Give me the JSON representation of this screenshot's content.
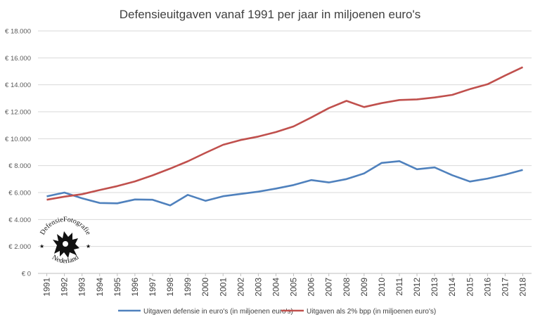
{
  "chart_data": {
    "type": "line",
    "title": "Defensieuitgaven vanaf 1991 per jaar in miljoenen euro's",
    "x": [
      "1991",
      "1992",
      "1993",
      "1994",
      "1995",
      "1996",
      "1997",
      "1998",
      "1999",
      "2000",
      "2001",
      "2002",
      "2003",
      "2004",
      "2005",
      "2006",
      "2007",
      "2008",
      "2009",
      "2010",
      "2011",
      "2012",
      "2013",
      "2014",
      "2015",
      "2016",
      "2017",
      "2018"
    ],
    "ylim": [
      0,
      18000
    ],
    "yticks": [
      0,
      2000,
      4000,
      6000,
      8000,
      10000,
      12000,
      14000,
      16000,
      18000
    ],
    "ytick_labels": [
      "€ 0",
      "€ 2.000",
      "€ 4.000",
      "€ 6.000",
      "€ 8.000",
      "€ 10.000",
      "€ 12.000",
      "€ 14.000",
      "€ 16.000",
      "€ 18.000"
    ],
    "grid": true,
    "legend_position": "bottom",
    "series": [
      {
        "name": "Uitgaven defensie in euro's (in miljoenen euro's)",
        "color": "#4f81bd",
        "values": [
          5720,
          6000,
          5580,
          5230,
          5200,
          5490,
          5470,
          5050,
          5830,
          5390,
          5730,
          5900,
          6070,
          6300,
          6560,
          6930,
          6750,
          7000,
          7420,
          8200,
          8330,
          7730,
          7870,
          7290,
          6820,
          7040,
          7330,
          7680
        ]
      },
      {
        "name": "Uitgaven als 2% bpp (in miljoenen euro's)",
        "color": "#c0504d",
        "values": [
          5470,
          5700,
          5880,
          6190,
          6480,
          6830,
          7280,
          7780,
          8320,
          8950,
          9550,
          9900,
          10160,
          10490,
          10910,
          11570,
          12270,
          12810,
          12350,
          12640,
          12870,
          12920,
          13060,
          13250,
          13680,
          14040,
          14690,
          15310
        ]
      }
    ]
  },
  "watermark": {
    "top_text": "DefensieFotografie",
    "bottom_text": "Nederland",
    "icon": "lion-icon"
  }
}
